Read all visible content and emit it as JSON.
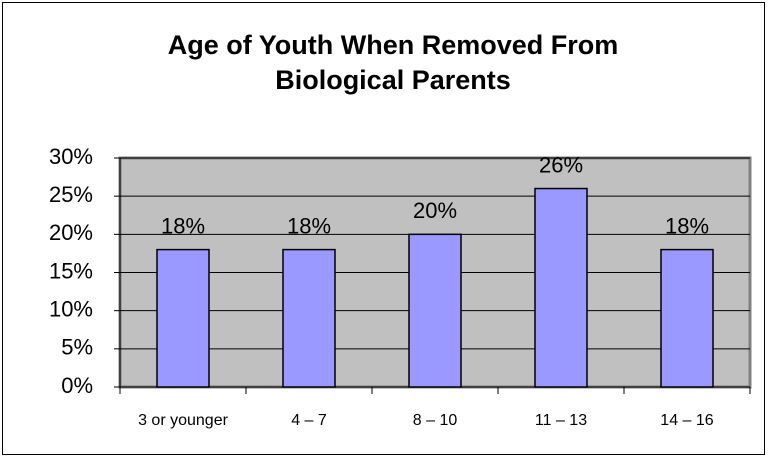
{
  "chart_data": {
    "type": "bar",
    "title": [
      "Age of Youth When Removed From",
      "Biological Parents"
    ],
    "categories": [
      "3 or younger",
      "4 – 7",
      "8 – 10",
      "11 – 13",
      "14 – 16"
    ],
    "values": [
      18,
      18,
      20,
      26,
      18
    ],
    "value_labels": [
      "18%",
      "18%",
      "20%",
      "26%",
      "18%"
    ],
    "color": "#9999ff",
    "ylim": [
      0,
      30
    ],
    "yticks": [
      {
        "value": 0,
        "label": "0%"
      },
      {
        "value": 5,
        "label": "5%"
      },
      {
        "value": 10,
        "label": "10%"
      },
      {
        "value": 15,
        "label": "15%"
      },
      {
        "value": 20,
        "label": "20%"
      },
      {
        "value": 25,
        "label": "25%"
      },
      {
        "value": 30,
        "label": "30%"
      }
    ],
    "grid": true
  }
}
